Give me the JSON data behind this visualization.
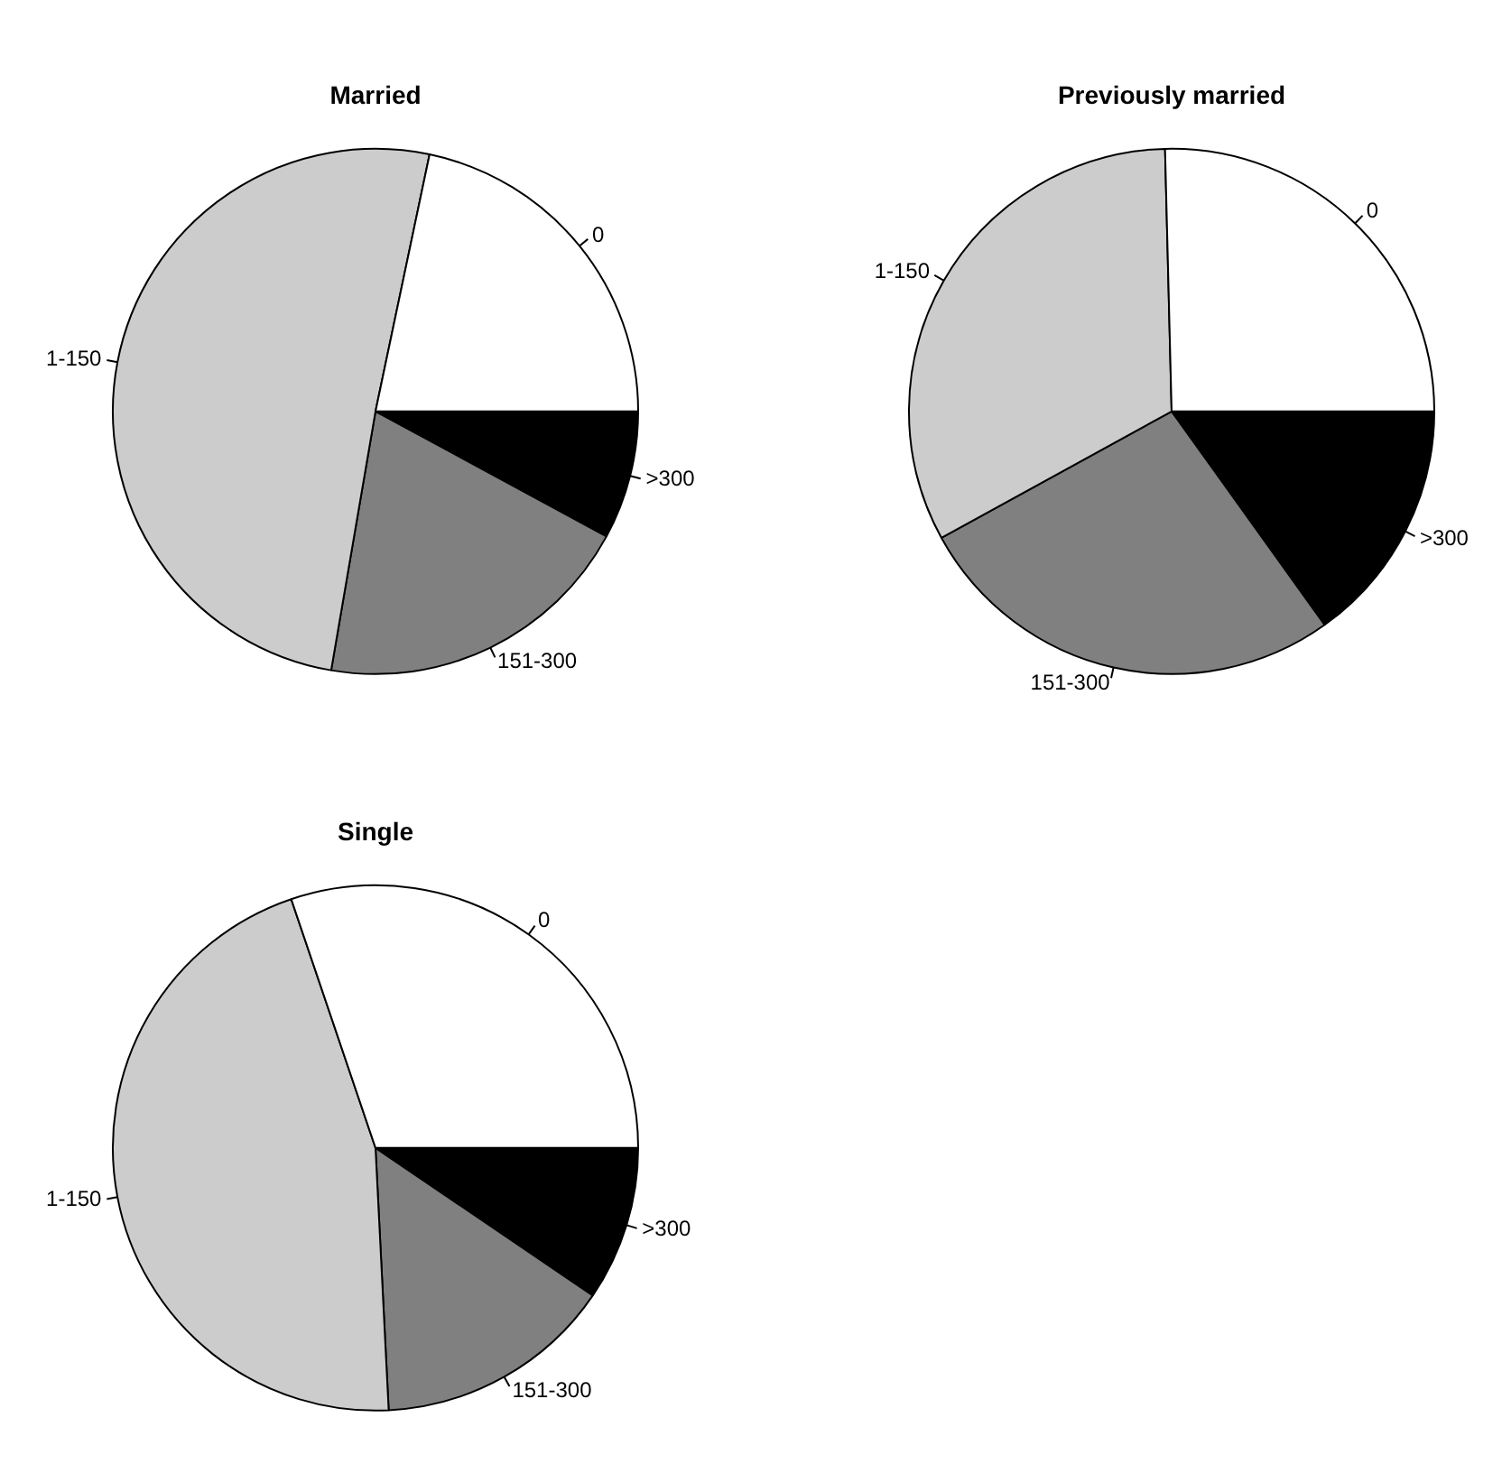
{
  "chart_data": [
    {
      "type": "pie",
      "title": "Married",
      "categories": [
        "0",
        "1-150",
        "151-300",
        ">300"
      ],
      "values": [
        21.7,
        50.6,
        19.8,
        7.9
      ],
      "colors": [
        "#ffffff",
        "#cccccc",
        "#808080",
        "#000000"
      ],
      "legend": false
    },
    {
      "type": "pie",
      "title": "Previously married",
      "categories": [
        "0",
        "1-150",
        "151-300",
        ">300"
      ],
      "values": [
        25.4,
        32.6,
        26.9,
        15.1
      ],
      "colors": [
        "#ffffff",
        "#cccccc",
        "#808080",
        "#000000"
      ],
      "legend": false
    },
    {
      "type": "pie",
      "title": "Single",
      "categories": [
        "0",
        "1-150",
        "151-300",
        ">300"
      ],
      "values": [
        30.2,
        45.6,
        14.7,
        9.5
      ],
      "colors": [
        "#ffffff",
        "#cccccc",
        "#808080",
        "#000000"
      ],
      "legend": false
    }
  ]
}
